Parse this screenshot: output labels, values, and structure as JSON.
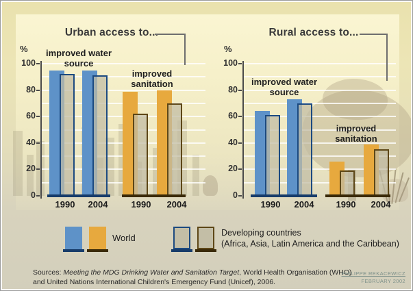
{
  "colors": {
    "water": "#5e92c8",
    "water_dark": "#1c4a80",
    "water_baseline": "#173c6a",
    "sanitation": "#e7a93e",
    "sanitation_dark": "#5d4717",
    "sanitation_baseline": "#3a2a08",
    "ghost_fill": "rgba(193,187,163,0.72)",
    "gridline": "rgba(255,255,255,0.8)",
    "background_top": "#eae2ae",
    "background_bottom": "#d3cfbc"
  },
  "chart_data": [
    {
      "type": "bar",
      "title": "Urban access to...",
      "ylabel": "%",
      "ylim": [
        0,
        100
      ],
      "yticks": [
        0,
        20,
        40,
        60,
        80,
        100
      ],
      "grid_step": 10,
      "categories": [
        "1990",
        "2004"
      ],
      "groups": [
        {
          "label": "improved water source",
          "theme": "water",
          "series": [
            {
              "name": "World",
              "values": [
                95,
                95
              ]
            },
            {
              "name": "Developing countries (Africa, Asia, Latin America and the Caribbean)",
              "values": [
                92,
                91
              ]
            }
          ]
        },
        {
          "label": "improved sanitation",
          "theme": "sanitation",
          "series": [
            {
              "name": "World",
              "values": [
                79,
                80
              ]
            },
            {
              "name": "Developing countries (Africa, Asia, Latin America and the Caribbean)",
              "values": [
                62,
                70
              ]
            }
          ]
        }
      ]
    },
    {
      "type": "bar",
      "title": "Rural access to...",
      "ylabel": "%",
      "ylim": [
        0,
        100
      ],
      "yticks": [
        0,
        20,
        40,
        60,
        80,
        100
      ],
      "grid_step": 10,
      "categories": [
        "1990",
        "2004"
      ],
      "groups": [
        {
          "label": "improved water source",
          "theme": "water",
          "series": [
            {
              "name": "World",
              "values": [
                64,
                73
              ]
            },
            {
              "name": "Developing countries (Africa, Asia, Latin America and the Caribbean)",
              "values": [
                61,
                70
              ]
            }
          ]
        },
        {
          "label": "improved sanitation",
          "theme": "sanitation",
          "series": [
            {
              "name": "World",
              "values": [
                26,
                39
              ]
            },
            {
              "name": "Developing countries (Africa, Asia, Latin America and the Caribbean)",
              "values": [
                19,
                35
              ]
            }
          ]
        }
      ]
    }
  ],
  "legend": {
    "world_label": "World",
    "developing_line1": "Developing countries",
    "developing_line2": "(Africa, Asia, Latin America and the Caribbean)"
  },
  "sources": {
    "line1_prefix": "Sources: ",
    "line1_italic": "Meeting the MDG Drinking Water and Sanitation Target",
    "line1_rest": ", World Health Organisation (WHO)",
    "line2": "and United Nations International Children's Emergency Fund (Unicef), 2006."
  },
  "credit": {
    "name": "PHILIPPE REKACEWICZ",
    "date": "FEBRUARY 2002"
  }
}
